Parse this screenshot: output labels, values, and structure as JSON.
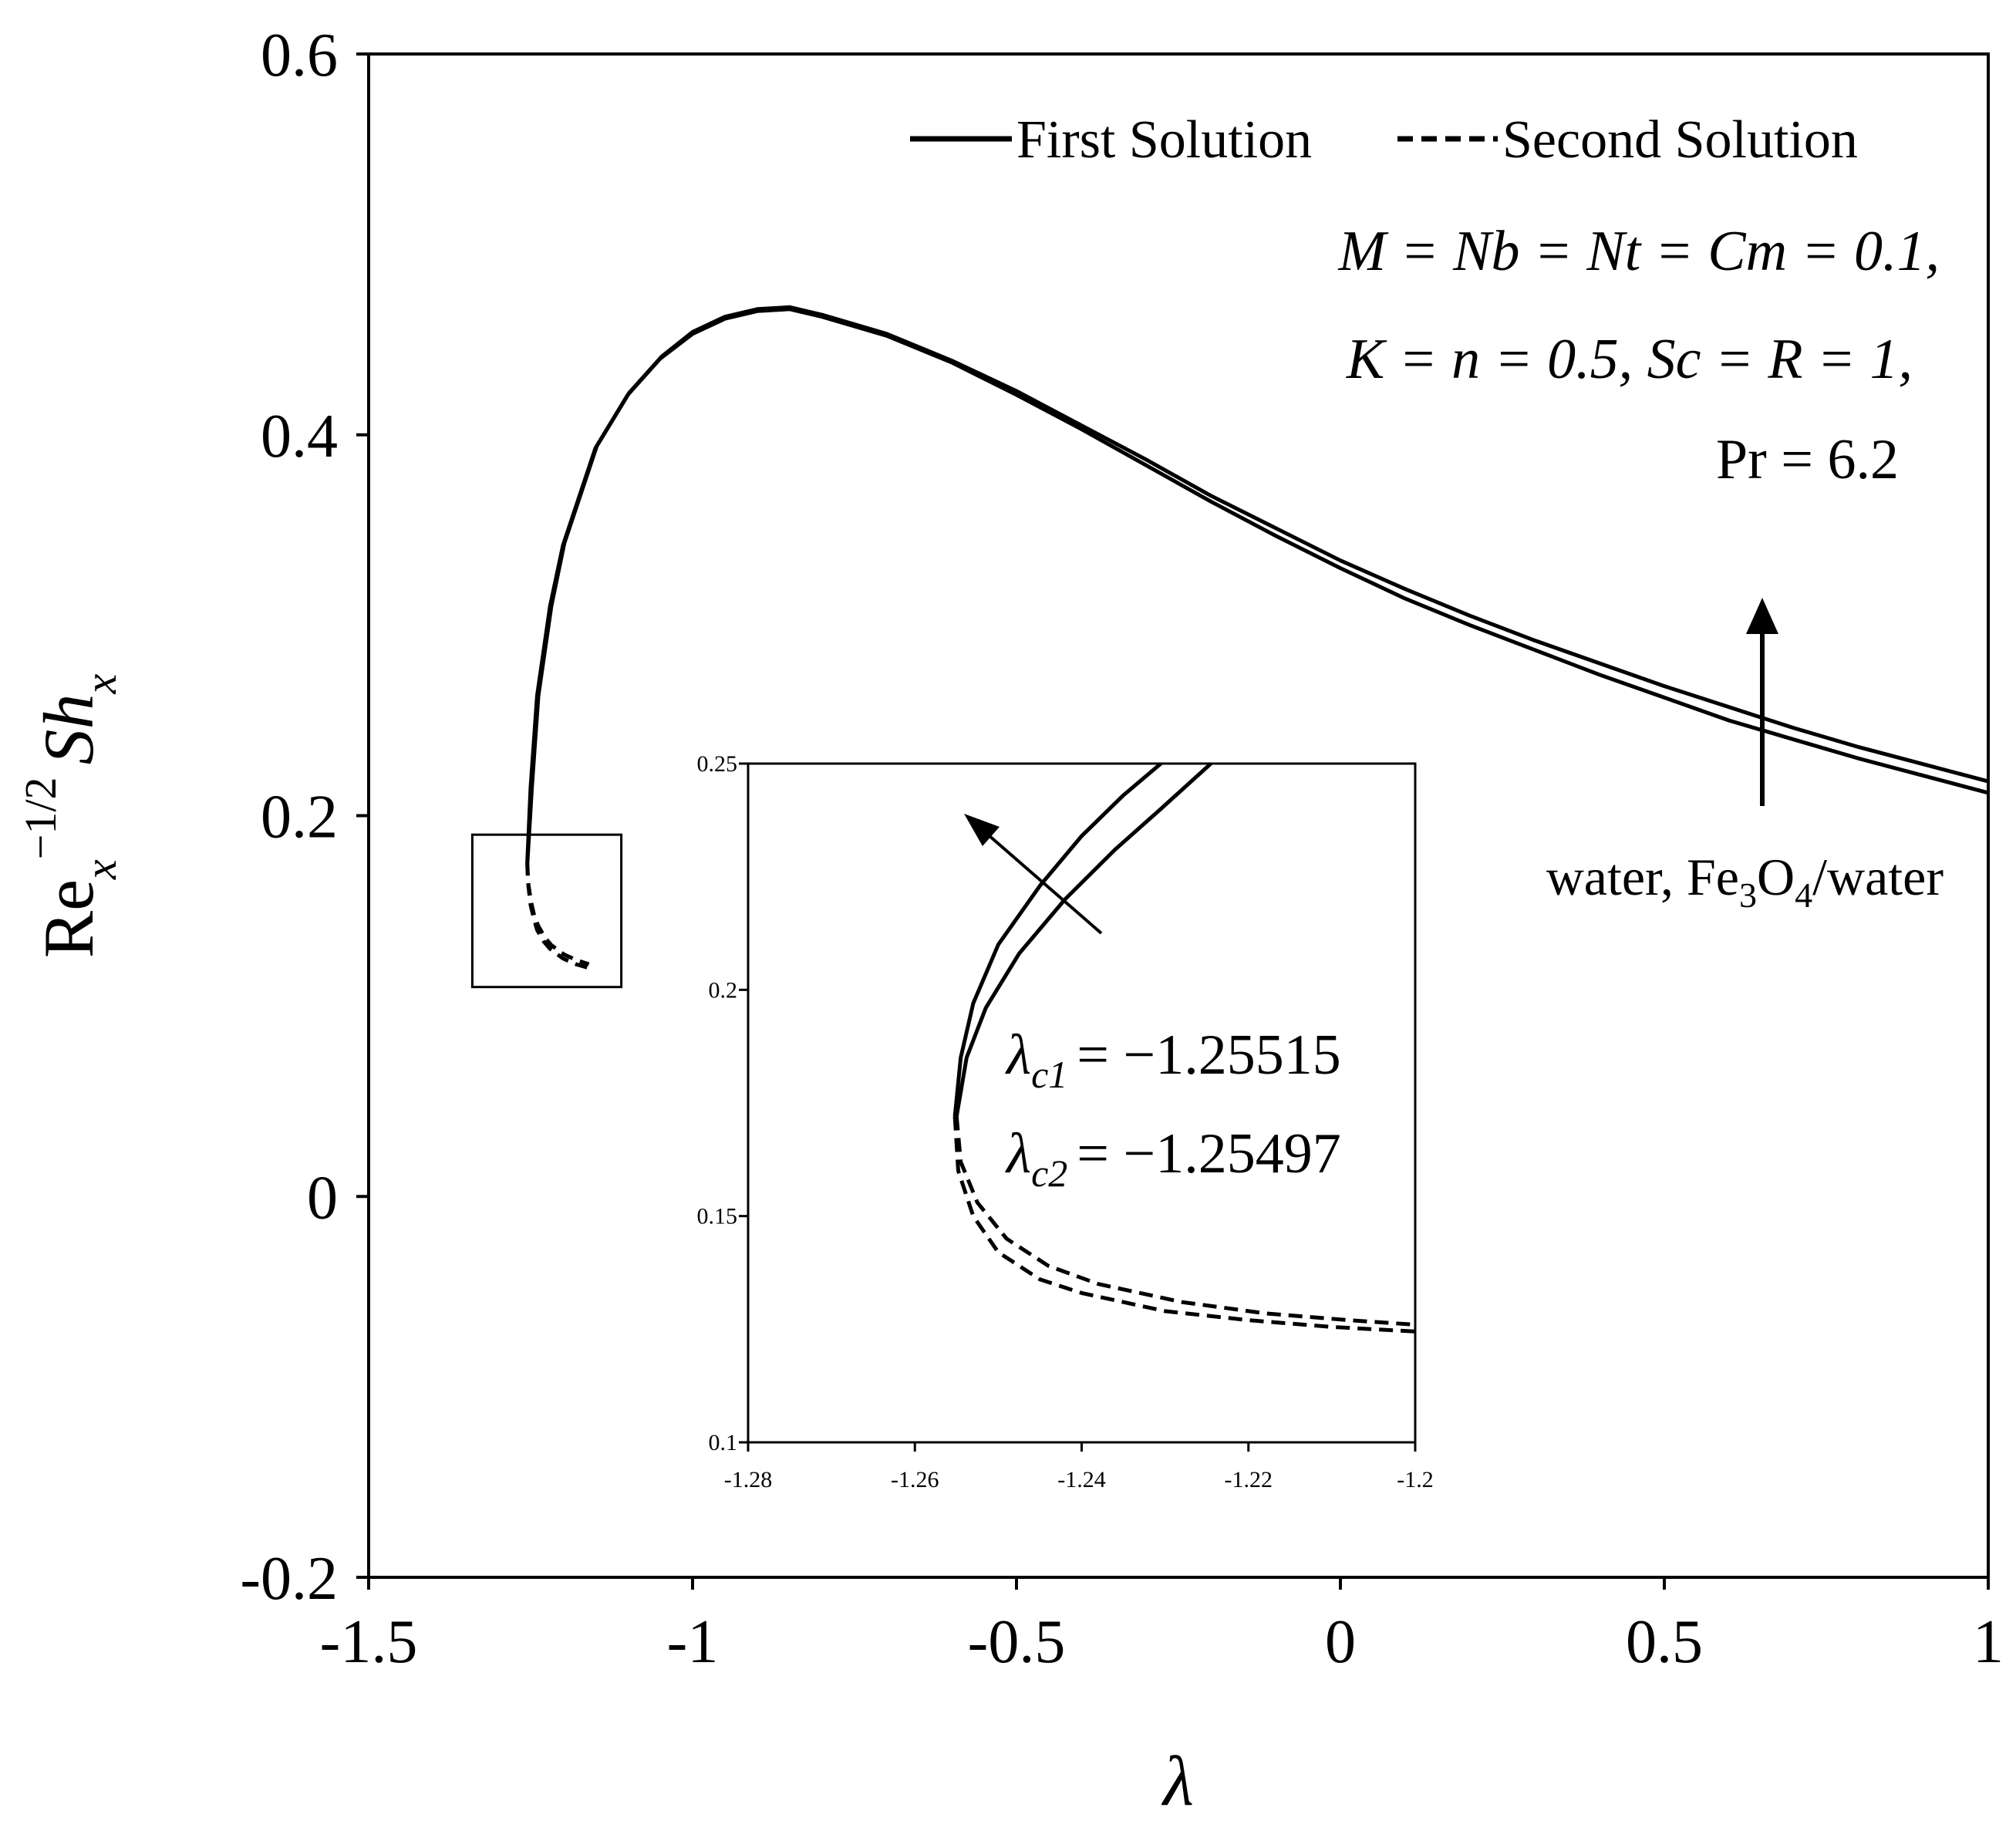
{
  "chart_data": [
    {
      "type": "line",
      "title": "",
      "xlabel": "λ",
      "ylabel": "Re_x^{-1/2} Sh_x",
      "ylabel_parts": {
        "main1": "Re",
        "sub1": "x",
        "sup1": "−1/2",
        "main2": "Sh",
        "sub2": "x"
      },
      "xlim": [
        -1.5,
        1
      ],
      "ylim": [
        -0.2,
        0.6
      ],
      "x_ticks": [
        -1.5,
        -1,
        -0.5,
        0,
        0.5,
        1
      ],
      "x_tick_labels": [
        "-1.5",
        "-1",
        "-0.5",
        "0",
        "0.5",
        "1"
      ],
      "y_ticks": [
        -0.2,
        0,
        0.2,
        0.4,
        0.6
      ],
      "y_tick_labels": [
        "-0.2",
        "0",
        "0.2",
        "0.4",
        "0.6"
      ],
      "grid": false,
      "legend": {
        "position": "top-right",
        "entries": [
          {
            "label": "First Solution",
            "style": "solid"
          },
          {
            "label": "Second Solution",
            "style": "dashed"
          }
        ]
      },
      "annotations": {
        "params": [
          "M = Nb = Nt = Cm = 0.1,",
          "K = n = 0.5, Sc = R = 1,",
          "Pr = 6.2"
        ],
        "arrow_label": "water, Fe3O4/water",
        "arrow_label_parts": {
          "a": "water, Fe",
          "s1": "3",
          "b": "O",
          "s2": "4",
          "c": "/water"
        }
      },
      "series": [
        {
          "name": "First Solution",
          "style": "solid",
          "curves": [
            [
              [
                -1.2552,
                0.175
              ],
              [
                -1.25,
                0.215
              ],
              [
                -1.24,
                0.263
              ],
              [
                -1.22,
                0.31
              ],
              [
                -1.2,
                0.342
              ],
              [
                -1.15,
                0.393
              ],
              [
                -1.1,
                0.421
              ],
              [
                -1.05,
                0.44
              ],
              [
                -1,
                0.453
              ],
              [
                -0.95,
                0.461
              ],
              [
                -0.9,
                0.465
              ],
              [
                -0.85,
                0.466
              ],
              [
                -0.8,
                0.462
              ],
              [
                -0.7,
                0.452
              ],
              [
                -0.6,
                0.438
              ],
              [
                -0.5,
                0.421
              ],
              [
                -0.4,
                0.403
              ],
              [
                -0.3,
                0.384
              ],
              [
                -0.2,
                0.365
              ],
              [
                -0.1,
                0.347
              ],
              [
                0,
                0.33
              ],
              [
                0.1,
                0.314
              ],
              [
                0.2,
                0.3
              ],
              [
                0.3,
                0.287
              ],
              [
                0.4,
                0.274
              ],
              [
                0.5,
                0.262
              ],
              [
                0.6,
                0.25
              ],
              [
                0.7,
                0.24
              ],
              [
                0.8,
                0.23
              ],
              [
                0.9,
                0.221
              ],
              [
                1,
                0.212
              ]
            ],
            [
              [
                -1.255,
                0.175
              ],
              [
                -1.248,
                0.215
              ],
              [
                -1.238,
                0.263
              ],
              [
                -1.218,
                0.31
              ],
              [
                -1.198,
                0.343
              ],
              [
                -1.148,
                0.394
              ],
              [
                -1.098,
                0.422
              ],
              [
                -1.048,
                0.441
              ],
              [
                -1,
                0.454
              ],
              [
                -0.95,
                0.462
              ],
              [
                -0.9,
                0.466
              ],
              [
                -0.85,
                0.467
              ],
              [
                -0.8,
                0.463
              ],
              [
                -0.7,
                0.453
              ],
              [
                -0.6,
                0.439
              ],
              [
                -0.5,
                0.423
              ],
              [
                -0.4,
                0.405
              ],
              [
                -0.3,
                0.387
              ],
              [
                -0.2,
                0.368
              ],
              [
                -0.1,
                0.351
              ],
              [
                0,
                0.334
              ],
              [
                0.1,
                0.319
              ],
              [
                0.2,
                0.305
              ],
              [
                0.3,
                0.292
              ],
              [
                0.4,
                0.28
              ],
              [
                0.5,
                0.268
              ],
              [
                0.6,
                0.257
              ],
              [
                0.7,
                0.246
              ],
              [
                0.8,
                0.236
              ],
              [
                0.9,
                0.227
              ],
              [
                1,
                0.218
              ]
            ]
          ]
        },
        {
          "name": "Second Solution",
          "style": "dashed",
          "curves": [
            [
              [
                -1.2552,
                0.175
              ],
              [
                -1.254,
                0.165
              ],
              [
                -1.25,
                0.153
              ],
              [
                -1.245,
                0.146
              ],
              [
                -1.24,
                0.14
              ],
              [
                -1.23,
                0.134
              ],
              [
                -1.22,
                0.13
              ],
              [
                -1.2,
                0.125
              ],
              [
                -1.18,
                0.122
              ],
              [
                -1.16,
                0.12
              ]
            ],
            [
              [
                -1.255,
                0.175
              ],
              [
                -1.2538,
                0.165
              ],
              [
                -1.2495,
                0.155
              ],
              [
                -1.244,
                0.147
              ],
              [
                -1.238,
                0.142
              ],
              [
                -1.228,
                0.136
              ],
              [
                -1.218,
                0.132
              ],
              [
                -1.198,
                0.127
              ],
              [
                -1.178,
                0.124
              ],
              [
                -1.16,
                0.122
              ]
            ]
          ]
        }
      ],
      "zoom_box": {
        "xlim": [
          -1.34,
          -1.11
        ],
        "ylim": [
          0.11,
          0.19
        ]
      }
    },
    {
      "type": "line",
      "title": "",
      "xlabel": "",
      "ylabel": "",
      "xlim": [
        -1.28,
        -1.2
      ],
      "ylim": [
        0.1,
        0.25
      ],
      "x_ticks": [
        -1.28,
        -1.26,
        -1.24,
        -1.22,
        -1.2
      ],
      "x_tick_labels": [
        "-1.28",
        "-1.26",
        "-1.24",
        "-1.22",
        "-1.2"
      ],
      "y_ticks": [
        0.1,
        0.15,
        0.2,
        0.25
      ],
      "y_tick_labels": [
        "0.1",
        "0.15",
        "0.2",
        "0.25"
      ],
      "grid": false,
      "critical_values": [
        {
          "sub": "c1",
          "value": "= −1.25515"
        },
        {
          "sub": "c2",
          "value": "= −1.25497"
        }
      ],
      "series": [
        {
          "name": "First Solution",
          "style": "solid",
          "curves": [
            [
              [
                -1.2552,
                0.172
              ],
              [
                -1.2545,
                0.185
              ],
              [
                -1.253,
                0.197
              ],
              [
                -1.25,
                0.21
              ],
              [
                -1.245,
                0.223
              ],
              [
                -1.24,
                0.234
              ],
              [
                -1.235,
                0.243
              ],
              [
                -1.2305,
                0.25
              ]
            ],
            [
              [
                -1.255,
                0.172
              ],
              [
                -1.2538,
                0.185
              ],
              [
                -1.2515,
                0.196
              ],
              [
                -1.2475,
                0.208
              ],
              [
                -1.242,
                0.22
              ],
              [
                -1.236,
                0.231
              ],
              [
                -1.2305,
                0.24
              ],
              [
                -1.2245,
                0.25
              ]
            ]
          ]
        },
        {
          "name": "Second Solution",
          "style": "dashed",
          "curves": [
            [
              [
                -1.2552,
                0.172
              ],
              [
                -1.2548,
                0.16
              ],
              [
                -1.253,
                0.15
              ],
              [
                -1.25,
                0.142
              ],
              [
                -1.245,
                0.136
              ],
              [
                -1.24,
                0.133
              ],
              [
                -1.23,
                0.129
              ],
              [
                -1.22,
                0.127
              ],
              [
                -1.21,
                0.1255
              ],
              [
                -1.2,
                0.1245
              ]
            ],
            [
              [
                -1.255,
                0.172
              ],
              [
                -1.2545,
                0.162
              ],
              [
                -1.2525,
                0.153
              ],
              [
                -1.249,
                0.145
              ],
              [
                -1.244,
                0.139
              ],
              [
                -1.238,
                0.135
              ],
              [
                -1.228,
                0.131
              ],
              [
                -1.218,
                0.1285
              ],
              [
                -1.208,
                0.127
              ],
              [
                -1.2,
                0.126
              ]
            ]
          ]
        }
      ]
    }
  ]
}
